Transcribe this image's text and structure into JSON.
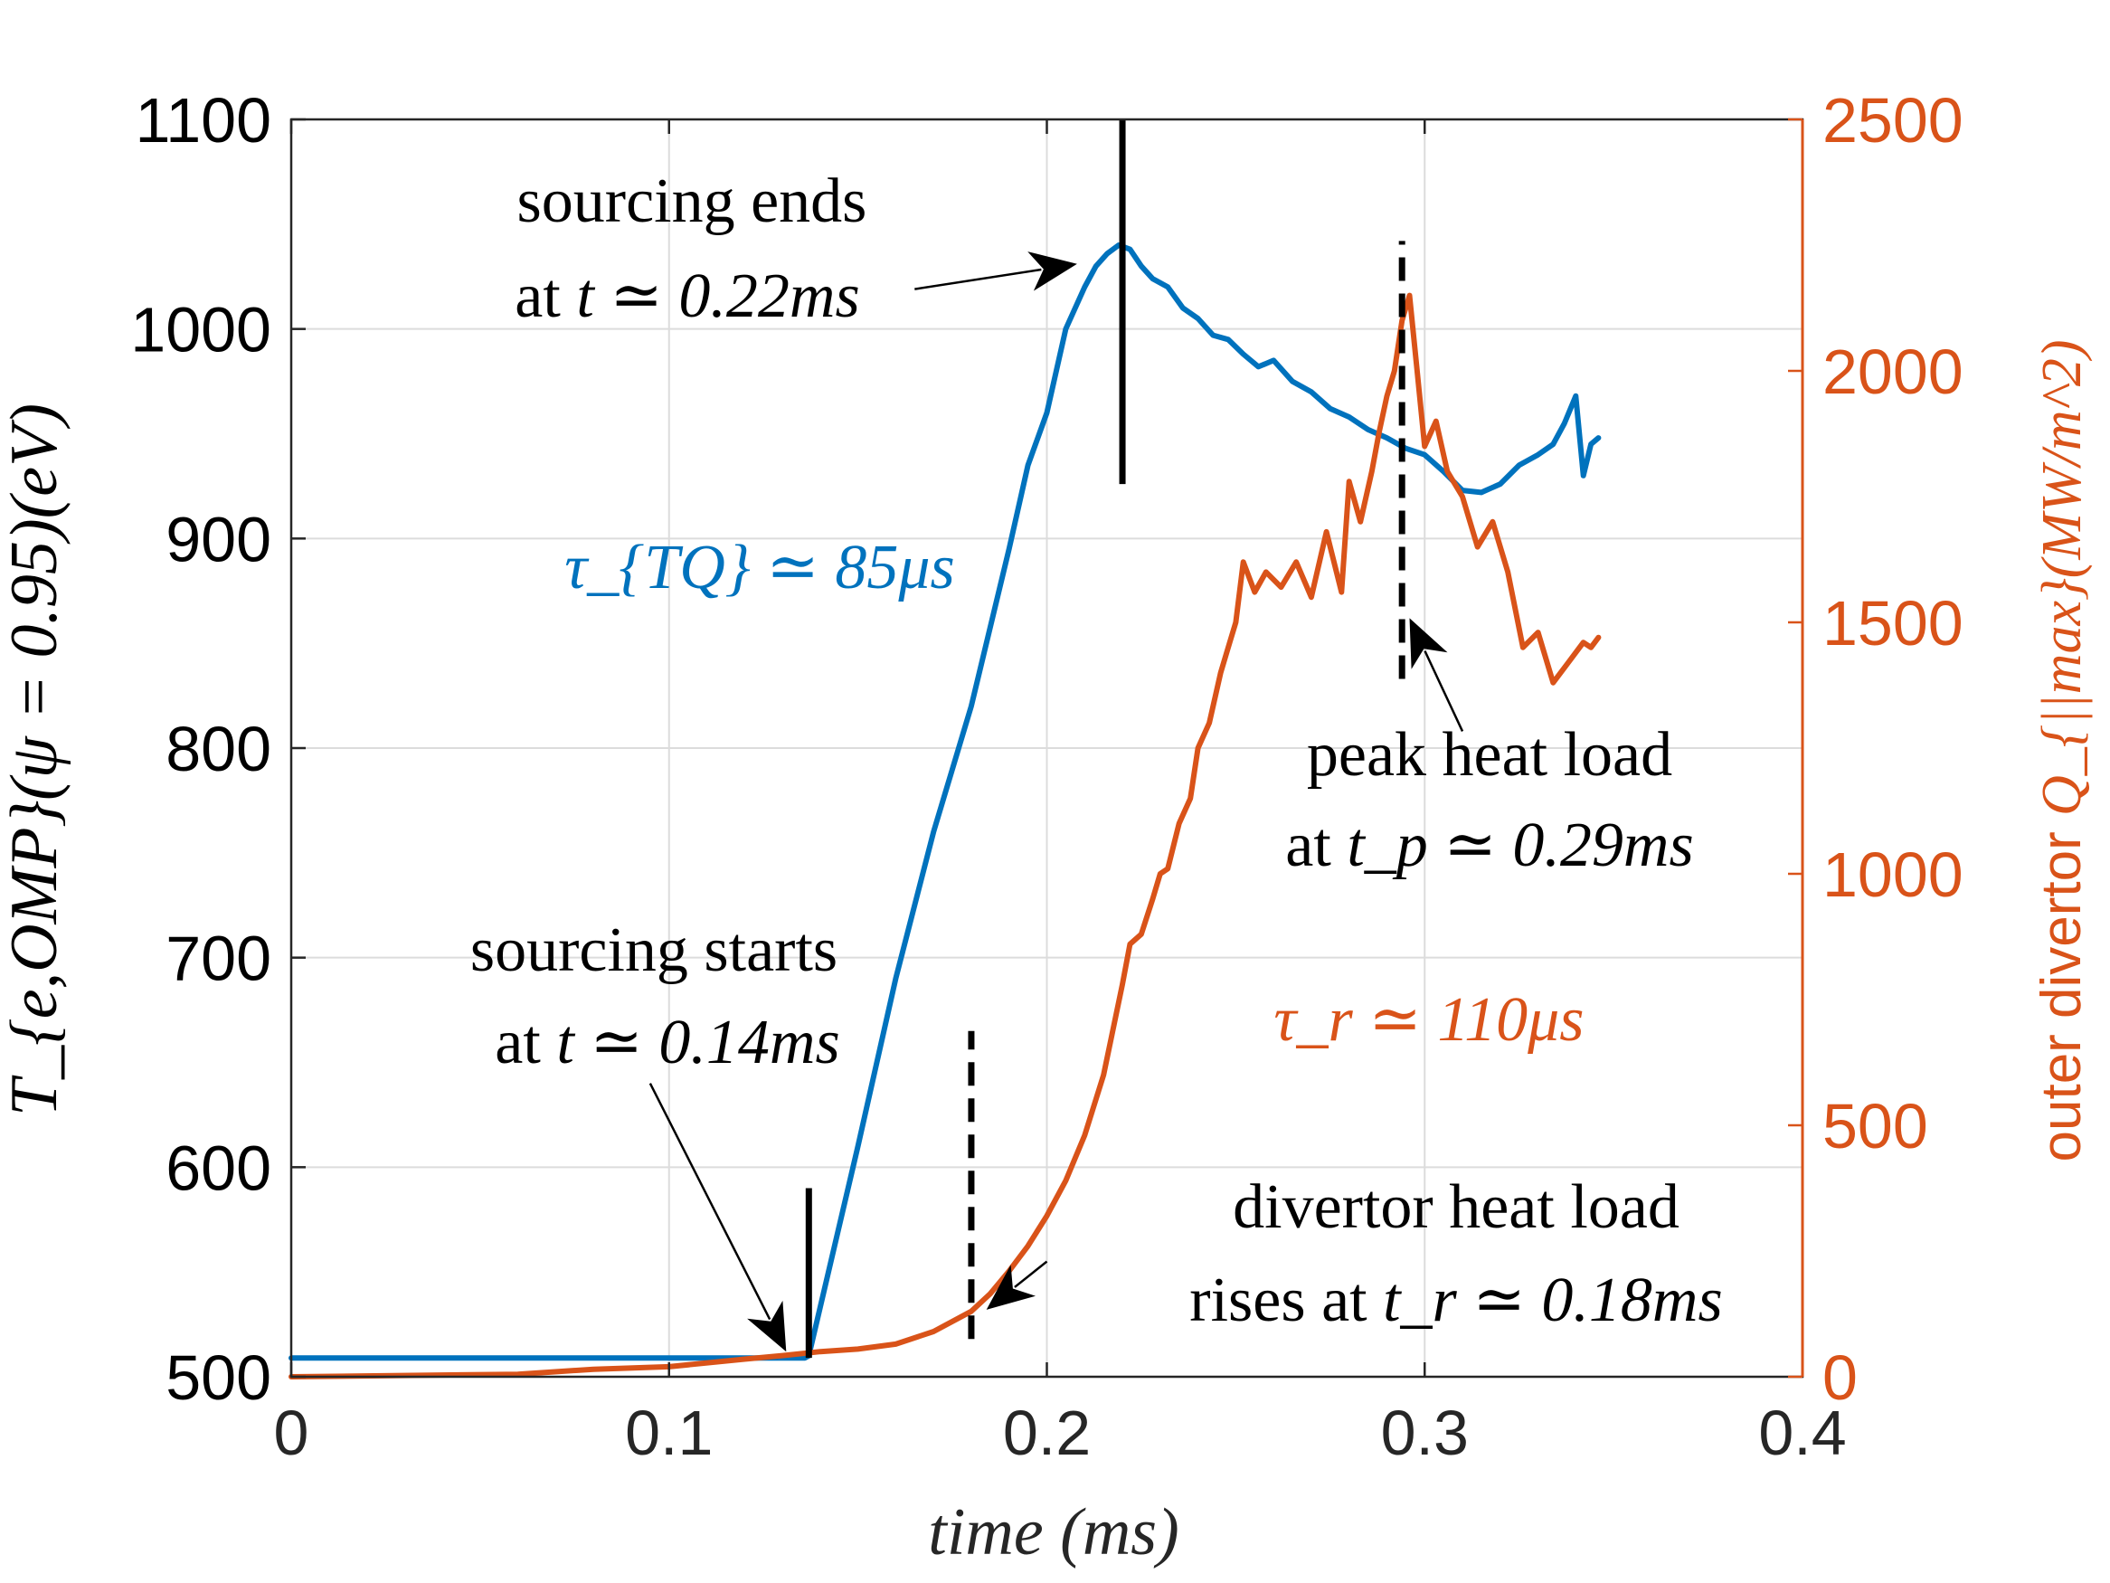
{
  "chart_data": {
    "type": "line",
    "xlabel": "time (ms)",
    "ylabel_left": "T_{e,OMP}(ψ = 0.95)(eV)",
    "ylabel_right_prefix": "outer divertor ",
    "ylabel_right_math": "Q_{||max}(MW/m^2)",
    "xlim": [
      0,
      0.4
    ],
    "ylim_left": [
      500,
      1100
    ],
    "ylim_right": [
      0,
      2500
    ],
    "xticks": [
      "0",
      "0.1",
      "0.2",
      "0.3",
      "0.4"
    ],
    "yticks_left": [
      "500",
      "600",
      "700",
      "800",
      "900",
      "1000",
      "1100"
    ],
    "yticks_right": [
      "0",
      "500",
      "1000",
      "1500",
      "2000",
      "2500"
    ],
    "grid": true,
    "colors": {
      "te": "#0072bd",
      "q": "#d95319",
      "axis": "#262626"
    },
    "series": [
      {
        "axis": "left",
        "color": "#0072bd",
        "x": [
          0,
          0.05,
          0.1,
          0.136,
          0.137,
          0.15,
          0.16,
          0.17,
          0.18,
          0.19,
          0.195,
          0.2,
          0.205,
          0.21,
          0.213,
          0.216,
          0.219,
          0.222,
          0.225,
          0.228,
          0.232,
          0.236,
          0.24,
          0.244,
          0.248,
          0.252,
          0.256,
          0.26,
          0.265,
          0.27,
          0.275,
          0.28,
          0.285,
          0.29,
          0.295,
          0.3,
          0.305,
          0.31,
          0.315,
          0.32,
          0.325,
          0.33,
          0.334,
          0.337,
          0.34,
          0.342,
          0.344,
          0.346
        ],
        "y": [
          509,
          509,
          509,
          509,
          510,
          610,
          690,
          760,
          820,
          895,
          935,
          960,
          1000,
          1020,
          1030,
          1036,
          1040,
          1038,
          1030,
          1024,
          1020,
          1010,
          1005,
          997,
          995,
          988,
          982,
          985,
          975,
          970,
          962,
          958,
          952,
          948,
          943,
          940,
          932,
          923,
          922,
          926,
          935,
          940,
          945,
          955,
          968,
          930,
          945,
          948
        ]
      },
      {
        "axis": "right",
        "color": "#d95319",
        "x": [
          0,
          0.06,
          0.08,
          0.1,
          0.12,
          0.13,
          0.14,
          0.15,
          0.16,
          0.17,
          0.18,
          0.185,
          0.19,
          0.195,
          0.2,
          0.205,
          0.21,
          0.215,
          0.22,
          0.222,
          0.225,
          0.228,
          0.23,
          0.232,
          0.235,
          0.238,
          0.24,
          0.243,
          0.246,
          0.248,
          0.25,
          0.252,
          0.255,
          0.258,
          0.262,
          0.266,
          0.27,
          0.274,
          0.278,
          0.28,
          0.283,
          0.286,
          0.288,
          0.29,
          0.292,
          0.294,
          0.296,
          0.298,
          0.3,
          0.303,
          0.306,
          0.31,
          0.314,
          0.318,
          0.322,
          0.326,
          0.33,
          0.334,
          0.338,
          0.342,
          0.344,
          0.346
        ],
        "y": [
          0,
          5,
          15,
          20,
          35,
          42,
          50,
          55,
          65,
          90,
          130,
          165,
          210,
          260,
          320,
          390,
          480,
          600,
          780,
          860,
          880,
          950,
          1000,
          1010,
          1100,
          1150,
          1250,
          1300,
          1400,
          1450,
          1500,
          1620,
          1560,
          1600,
          1570,
          1620,
          1550,
          1680,
          1560,
          1780,
          1700,
          1800,
          1880,
          1950,
          2000,
          2100,
          2150,
          2000,
          1850,
          1900,
          1800,
          1750,
          1650,
          1700,
          1600,
          1450,
          1480,
          1380,
          1420,
          1460,
          1450,
          1470
        ]
      }
    ],
    "vlines": [
      {
        "x": 0.22,
        "y_from": 926,
        "y_to": 1100,
        "style": "solid"
      },
      {
        "x": 0.137,
        "y_from": 509,
        "y_to": 590,
        "style": "solid"
      },
      {
        "x": 0.18,
        "y_from": 518,
        "y_to": 665,
        "style": "dashed"
      },
      {
        "x": 0.294,
        "y_from": 833,
        "y_to": 1042,
        "style": "dashed"
      }
    ],
    "arrows": [
      {
        "from": [
          0.165,
          1019
        ],
        "to": [
          0.208,
          1031
        ]
      },
      {
        "from": [
          0.095,
          640
        ],
        "to": [
          0.131,
          512
        ]
      },
      {
        "from": [
          0.2,
          555
        ],
        "to": [
          0.184,
          532
        ]
      },
      {
        "from": [
          0.31,
          808
        ],
        "to": [
          0.296,
          862
        ]
      }
    ],
    "annotations": {
      "sourcing_ends_l1": "sourcing ends",
      "sourcing_ends_l2_pre": "at ",
      "sourcing_ends_l2_math": "t ≃ 0.22ms",
      "sourcing_starts_l1": "sourcing starts",
      "sourcing_starts_l2_pre": "at ",
      "sourcing_starts_l2_math": "t ≃ 0.14ms",
      "peak_l1": "peak heat load",
      "peak_l2_pre": "at ",
      "peak_l2_math": "t_p ≃ 0.29ms",
      "divertor_l1": "divertor heat load",
      "divertor_l2_pre": "rises at ",
      "divertor_l2_math": "t_r ≃ 0.18ms",
      "tau_tq": "τ_{TQ} ≃ 85μs",
      "tau_r": "τ_r ≃ 110μs"
    }
  }
}
